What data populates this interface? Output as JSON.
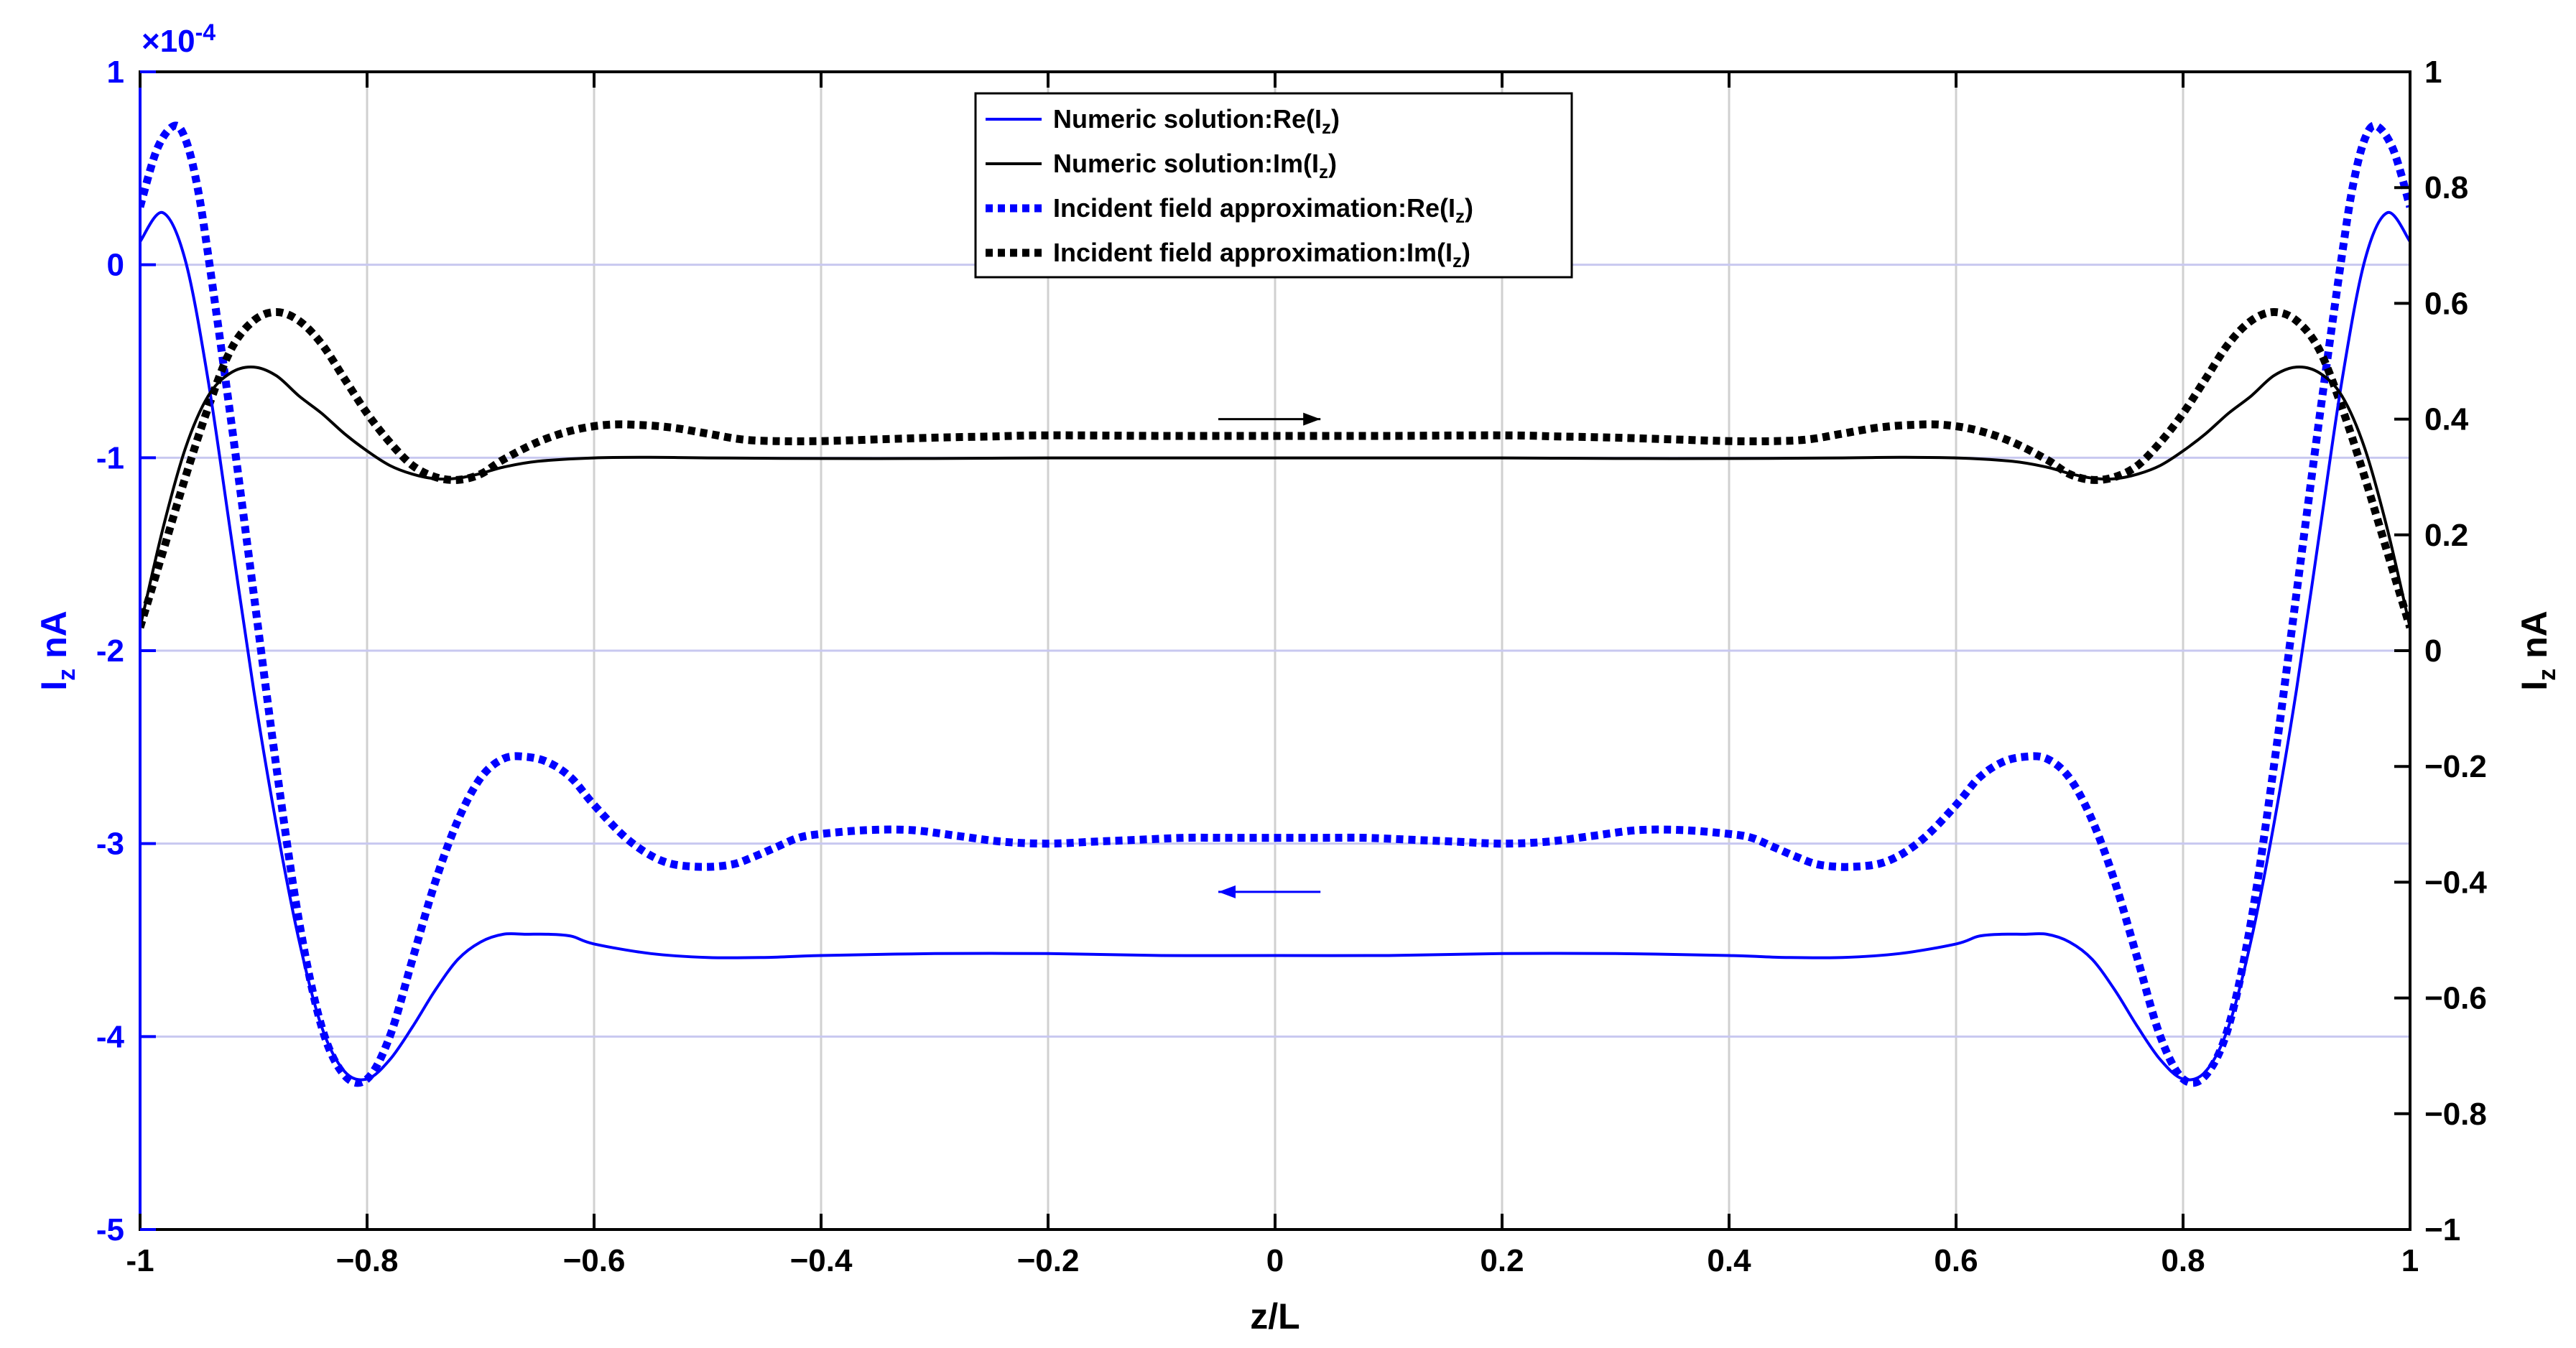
{
  "chart_data": {
    "type": "line",
    "xlabel": "z/L",
    "ylabel_left": {
      "main": "I",
      "sub": "z",
      "unit": " nA"
    },
    "ylabel_right": {
      "main": "I",
      "sub": "z",
      "unit": " nA"
    },
    "left_axis_exponent": {
      "base": "×10",
      "power": "-4"
    },
    "xlim": [
      -1,
      1
    ],
    "ylim_left": [
      -5,
      1
    ],
    "ylim_right": [
      -1,
      1
    ],
    "x_ticks": [
      "-1",
      "−0.8",
      "−0.6",
      "−0.4",
      "−0.2",
      "0",
      "0.2",
      "0.4",
      "0.6",
      "0.8",
      "1"
    ],
    "left_ticks": [
      "1",
      "0",
      "-1",
      "-2",
      "-3",
      "-4",
      "-5"
    ],
    "right_ticks": [
      "1",
      "0.8",
      "0.6",
      "0.4",
      "0.2",
      "0",
      "−0.2",
      "−0.4",
      "−0.6",
      "−0.8",
      "−1"
    ],
    "grid": true,
    "legend_position": "top-center",
    "colors": {
      "real": "#0000ff",
      "imag": "#000000",
      "grid": "#c8c8f0"
    },
    "series": [
      {
        "name": "Numeric  solution:Re(I_z)",
        "legend": {
          "pre": "Numeric  solution:Re(I",
          "sub": "z",
          "post": ")"
        },
        "axis": "left",
        "color": "#0000ff",
        "dash": "solid",
        "x": [
          -1,
          -0.98,
          -0.96,
          -0.94,
          -0.92,
          -0.9,
          -0.88,
          -0.86,
          -0.84,
          -0.82,
          -0.8,
          -0.78,
          -0.76,
          -0.74,
          -0.72,
          -0.7,
          -0.68,
          -0.66,
          -0.64,
          -0.62,
          -0.6,
          -0.55,
          -0.5,
          -0.45,
          -0.4,
          -0.3,
          -0.2,
          -0.1,
          0,
          0.1,
          0.2,
          0.3,
          0.4,
          0.45,
          0.5,
          0.55,
          0.6,
          0.62,
          0.64,
          0.66,
          0.68,
          0.7,
          0.72,
          0.74,
          0.76,
          0.78,
          0.8,
          0.82,
          0.84,
          0.86,
          0.88,
          0.9,
          0.92,
          0.94,
          0.96,
          0.98,
          1
        ],
        "y": [
          0.12,
          0.27,
          0.02,
          -0.6,
          -1.4,
          -2.2,
          -2.9,
          -3.5,
          -3.95,
          -4.18,
          -4.22,
          -4.12,
          -3.95,
          -3.76,
          -3.6,
          -3.51,
          -3.47,
          -3.47,
          -3.47,
          -3.48,
          -3.52,
          -3.57,
          -3.59,
          -3.59,
          -3.58,
          -3.57,
          -3.57,
          -3.58,
          -3.58,
          -3.58,
          -3.57,
          -3.57,
          -3.58,
          -3.59,
          -3.59,
          -3.57,
          -3.52,
          -3.48,
          -3.47,
          -3.47,
          -3.47,
          -3.51,
          -3.6,
          -3.76,
          -3.95,
          -4.12,
          -4.22,
          -4.18,
          -3.95,
          -3.5,
          -2.9,
          -2.2,
          -1.4,
          -0.6,
          0.02,
          0.27,
          0.12
        ]
      },
      {
        "name": "Numeric  solution:Im(I_z)",
        "legend": {
          "pre": "Numeric  solution:Im(I",
          "sub": "z",
          "post": ")"
        },
        "axis": "right",
        "color": "#000000",
        "dash": "solid",
        "x": [
          -1,
          -0.98,
          -0.96,
          -0.94,
          -0.92,
          -0.9,
          -0.88,
          -0.86,
          -0.84,
          -0.82,
          -0.8,
          -0.78,
          -0.76,
          -0.74,
          -0.72,
          -0.7,
          -0.68,
          -0.65,
          -0.6,
          -0.55,
          -0.5,
          -0.4,
          -0.3,
          -0.2,
          -0.1,
          0,
          0.1,
          0.2,
          0.3,
          0.4,
          0.5,
          0.55,
          0.6,
          0.65,
          0.68,
          0.7,
          0.72,
          0.74,
          0.76,
          0.78,
          0.8,
          0.82,
          0.84,
          0.86,
          0.88,
          0.9,
          0.92,
          0.94,
          0.96,
          0.98,
          1
        ],
        "y": [
          0.04,
          0.21,
          0.35,
          0.44,
          0.48,
          0.49,
          0.475,
          0.44,
          0.41,
          0.375,
          0.345,
          0.32,
          0.305,
          0.297,
          0.298,
          0.306,
          0.317,
          0.327,
          0.333,
          0.334,
          0.333,
          0.332,
          0.332,
          0.333,
          0.333,
          0.333,
          0.333,
          0.333,
          0.332,
          0.332,
          0.333,
          0.334,
          0.333,
          0.327,
          0.317,
          0.306,
          0.298,
          0.297,
          0.305,
          0.32,
          0.345,
          0.375,
          0.41,
          0.44,
          0.475,
          0.49,
          0.48,
          0.44,
          0.35,
          0.21,
          0.04
        ]
      },
      {
        "name": "Incident  field  approximation:Re(I_z)",
        "legend": {
          "pre": "Incident  field  approximation:Re(I",
          "sub": "z",
          "post": ")"
        },
        "axis": "left",
        "color": "#0000ff",
        "dash": "dotted",
        "x": [
          -1,
          -0.985,
          -0.97,
          -0.96,
          -0.95,
          -0.94,
          -0.92,
          -0.9,
          -0.88,
          -0.86,
          -0.84,
          -0.82,
          -0.8,
          -0.78,
          -0.76,
          -0.74,
          -0.72,
          -0.7,
          -0.68,
          -0.66,
          -0.64,
          -0.62,
          -0.6,
          -0.57,
          -0.54,
          -0.51,
          -0.48,
          -0.46,
          -0.44,
          -0.42,
          -0.4,
          -0.36,
          -0.32,
          -0.28,
          -0.24,
          -0.2,
          -0.16,
          -0.12,
          -0.08,
          -0.04,
          0,
          0.04,
          0.08,
          0.12,
          0.16,
          0.2,
          0.24,
          0.28,
          0.32,
          0.36,
          0.4,
          0.42,
          0.44,
          0.46,
          0.48,
          0.51,
          0.54,
          0.57,
          0.6,
          0.62,
          0.64,
          0.66,
          0.68,
          0.7,
          0.72,
          0.74,
          0.76,
          0.78,
          0.8,
          0.82,
          0.84,
          0.86,
          0.88,
          0.9,
          0.92,
          0.94,
          0.95,
          0.96,
          0.97,
          0.985,
          1
        ],
        "y": [
          0.3,
          0.6,
          0.72,
          0.65,
          0.42,
          0.05,
          -0.8,
          -1.7,
          -2.6,
          -3.4,
          -3.95,
          -4.2,
          -4.22,
          -4.0,
          -3.6,
          -3.2,
          -2.88,
          -2.66,
          -2.56,
          -2.55,
          -2.58,
          -2.66,
          -2.8,
          -2.98,
          -3.09,
          -3.12,
          -3.11,
          -3.07,
          -3.02,
          -2.97,
          -2.95,
          -2.93,
          -2.93,
          -2.96,
          -2.99,
          -3.0,
          -2.99,
          -2.98,
          -2.97,
          -2.97,
          -2.97,
          -2.97,
          -2.97,
          -2.98,
          -2.99,
          -3.0,
          -2.99,
          -2.96,
          -2.93,
          -2.93,
          -2.95,
          -2.97,
          -3.02,
          -3.07,
          -3.11,
          -3.12,
          -3.09,
          -2.98,
          -2.8,
          -2.66,
          -2.58,
          -2.55,
          -2.56,
          -2.66,
          -2.88,
          -3.2,
          -3.6,
          -4.0,
          -4.22,
          -4.2,
          -3.95,
          -3.4,
          -2.6,
          -1.7,
          -0.8,
          0.05,
          0.42,
          0.65,
          0.72,
          0.6,
          0.3
        ]
      },
      {
        "name": "Incident  field  approximation:Im(I_z)",
        "legend": {
          "pre": "Incident  field  approximation:Im(I",
          "sub": "z",
          "post": ")"
        },
        "axis": "right",
        "color": "#000000",
        "dash": "dotted",
        "x": [
          -1,
          -0.98,
          -0.96,
          -0.94,
          -0.92,
          -0.9,
          -0.88,
          -0.86,
          -0.84,
          -0.82,
          -0.8,
          -0.78,
          -0.76,
          -0.74,
          -0.72,
          -0.7,
          -0.68,
          -0.65,
          -0.62,
          -0.59,
          -0.56,
          -0.53,
          -0.5,
          -0.47,
          -0.44,
          -0.4,
          -0.35,
          -0.3,
          -0.25,
          -0.2,
          -0.1,
          0,
          0.1,
          0.2,
          0.25,
          0.3,
          0.35,
          0.4,
          0.44,
          0.47,
          0.5,
          0.53,
          0.56,
          0.59,
          0.62,
          0.65,
          0.68,
          0.7,
          0.72,
          0.74,
          0.76,
          0.78,
          0.8,
          0.82,
          0.84,
          0.86,
          0.88,
          0.9,
          0.92,
          0.94,
          0.96,
          0.98,
          1
        ],
        "y": [
          0.04,
          0.17,
          0.3,
          0.42,
          0.52,
          0.57,
          0.585,
          0.57,
          0.53,
          0.47,
          0.41,
          0.36,
          0.32,
          0.3,
          0.295,
          0.305,
          0.33,
          0.36,
          0.38,
          0.39,
          0.39,
          0.385,
          0.375,
          0.365,
          0.362,
          0.362,
          0.365,
          0.368,
          0.37,
          0.372,
          0.371,
          0.371,
          0.371,
          0.372,
          0.37,
          0.368,
          0.365,
          0.362,
          0.362,
          0.365,
          0.375,
          0.385,
          0.39,
          0.39,
          0.38,
          0.36,
          0.33,
          0.305,
          0.295,
          0.3,
          0.32,
          0.36,
          0.41,
          0.47,
          0.53,
          0.57,
          0.585,
          0.57,
          0.52,
          0.42,
          0.3,
          0.17,
          0.04
        ]
      }
    ],
    "annotations": [
      {
        "type": "arrow",
        "direction": "right",
        "color": "#000000",
        "x_from": -0.05,
        "x_to": 0.04,
        "axis": "right",
        "y": 0.4
      },
      {
        "type": "arrow",
        "direction": "left",
        "color": "#0000ff",
        "x_from": 0.04,
        "x_to": -0.05,
        "axis": "left",
        "y": -3.25
      }
    ]
  }
}
